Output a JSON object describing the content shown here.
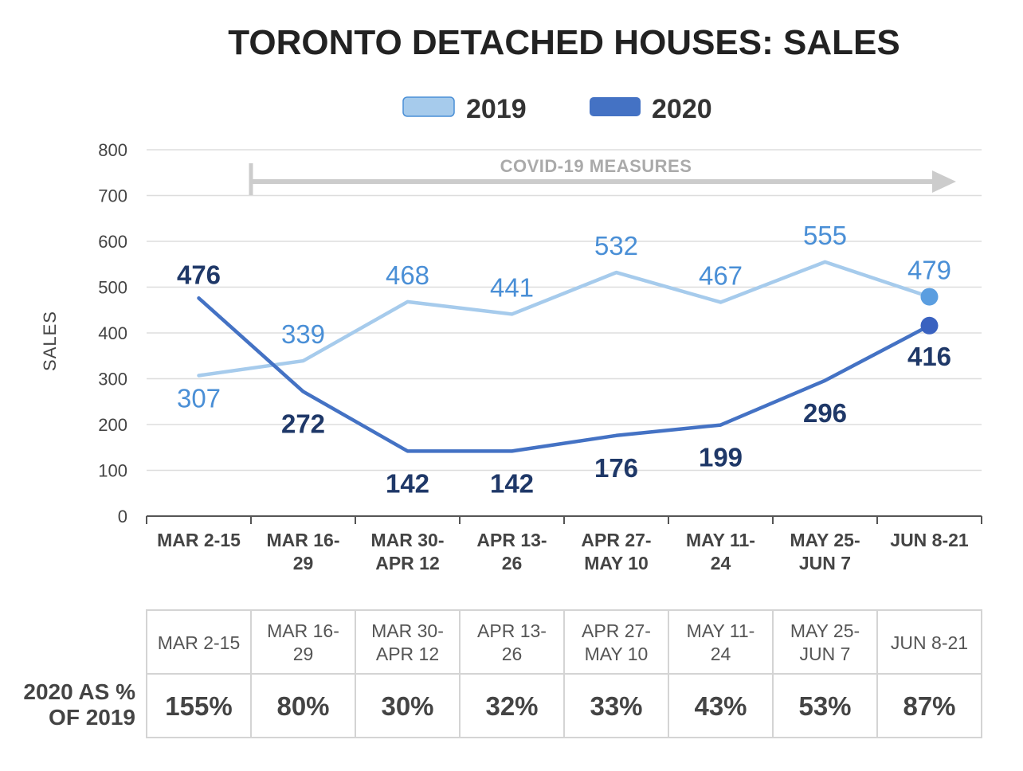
{
  "colors": {
    "series_2019": "#a6cbec",
    "series_2020": "#4472c4",
    "label_2019": "#4a8fd6",
    "label_2020": "#1f3868",
    "marker_2019": "#5b9ee0",
    "marker_2020": "#3a62c0",
    "grid": "#dddddd",
    "axis": "#555555",
    "covid_arrow": "#cccccc"
  },
  "chart_data": {
    "type": "line",
    "title": "TORONTO DETACHED HOUSES: SALES",
    "ylabel": "SALES",
    "xlabel": "",
    "ylim": [
      0,
      800
    ],
    "yticks": [
      "0",
      "100",
      "200",
      "300",
      "400",
      "500",
      "600",
      "700",
      "800"
    ],
    "grid": true,
    "legend_position": "top-center",
    "categories": [
      [
        "MAR 2-15"
      ],
      [
        "MAR 16-",
        "29"
      ],
      [
        "MAR 30-",
        "APR 12"
      ],
      [
        "APR 13-",
        "26"
      ],
      [
        "APR 27-",
        "MAY 10"
      ],
      [
        "MAY 11-",
        "24"
      ],
      [
        "MAY 25-",
        "JUN 7"
      ],
      [
        "JUN 8-21"
      ]
    ],
    "series": [
      {
        "name": "2019",
        "values": [
          307,
          339,
          468,
          441,
          532,
          467,
          555,
          479
        ]
      },
      {
        "name": "2020",
        "values": [
          476,
          272,
          142,
          142,
          176,
          199,
          296,
          416
        ]
      }
    ],
    "annotation": {
      "text": "COVID-19 MEASURES",
      "start_category_boundary": 1,
      "direction": "right"
    }
  },
  "table": {
    "row_label": [
      "2020 AS %",
      "OF 2019"
    ],
    "headers": [
      [
        "MAR 2-15"
      ],
      [
        "MAR 16-",
        "29"
      ],
      [
        "MAR 30-",
        "APR 12"
      ],
      [
        "APR 13-",
        "26"
      ],
      [
        "APR 27-",
        "MAY 10"
      ],
      [
        "MAY 11-",
        "24"
      ],
      [
        "MAY 25-",
        "JUN 7"
      ],
      [
        "JUN 8-21"
      ]
    ],
    "values": [
      "155%",
      "80%",
      "30%",
      "32%",
      "33%",
      "43%",
      "53%",
      "87%"
    ]
  }
}
